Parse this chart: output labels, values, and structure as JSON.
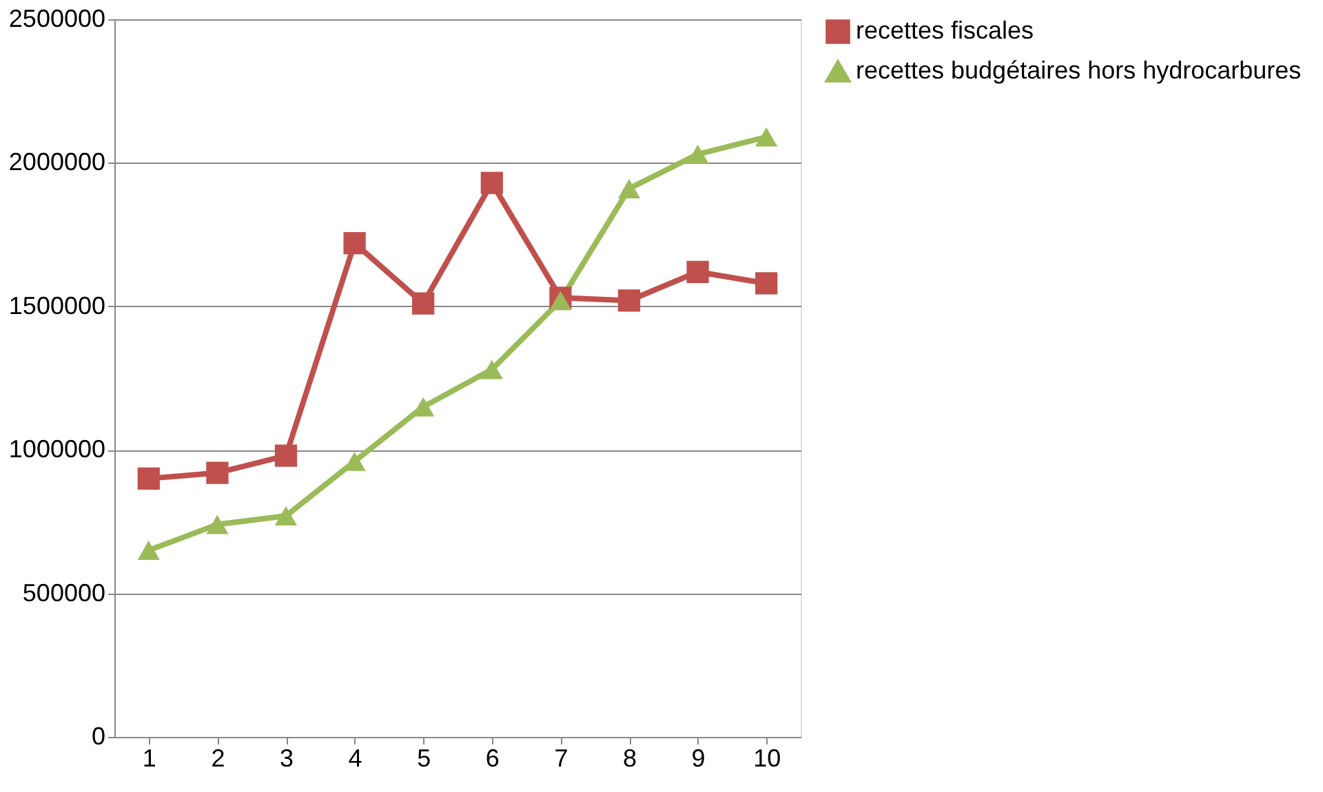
{
  "chart_data": {
    "type": "line",
    "categories": [
      "1",
      "2",
      "3",
      "4",
      "5",
      "6",
      "7",
      "8",
      "9",
      "10"
    ],
    "series": [
      {
        "name": "recettes fiscales",
        "color": "#c0504d",
        "marker": "square",
        "values": [
          900000,
          920000,
          980000,
          1720000,
          1510000,
          1930000,
          1530000,
          1520000,
          1620000,
          1580000
        ]
      },
      {
        "name": "recettes budgétaires hors hydrocarbures",
        "color": "#9bbb59",
        "marker": "triangle",
        "values": [
          650000,
          740000,
          770000,
          960000,
          1150000,
          1280000,
          1520000,
          1910000,
          2030000,
          2090000
        ]
      }
    ],
    "ylim": [
      0,
      2500000
    ],
    "yticks": [
      0,
      500000,
      1000000,
      1500000,
      2000000,
      2500000
    ],
    "grid": "y",
    "legend": "right"
  }
}
